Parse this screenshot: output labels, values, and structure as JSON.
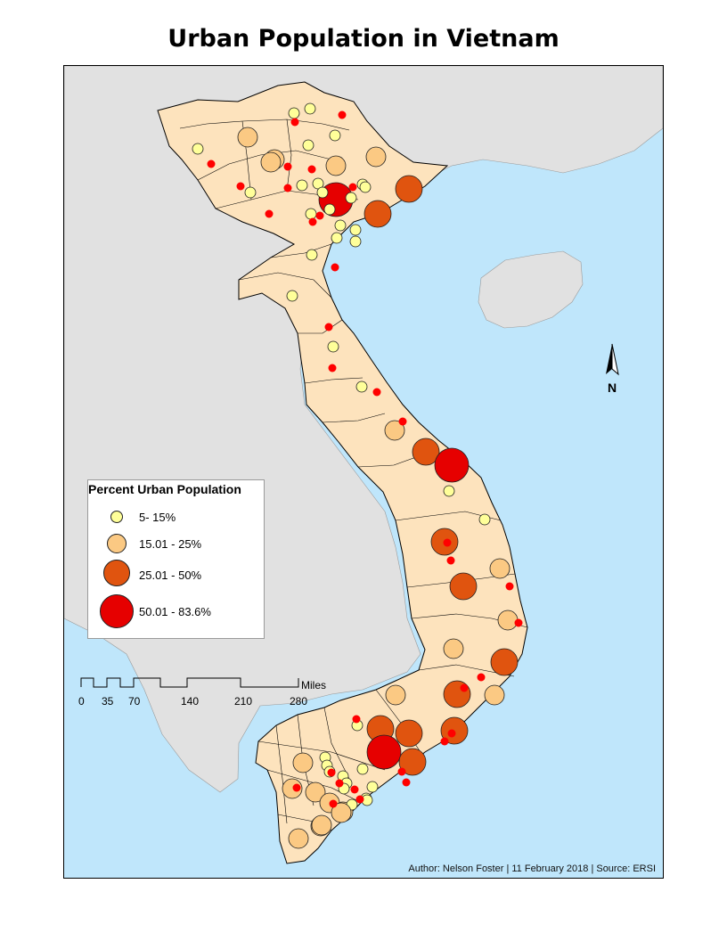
{
  "title": "Urban Population in Vietnam",
  "colors": {
    "sea": "#bfe6fb",
    "neighbor_land": "#e1e1e1",
    "province_fill": "#fde3bd",
    "province_border": "#000000",
    "class1": "#ffff99",
    "class2": "#fbc983",
    "class3": "#e0540f",
    "class4": "#e60000",
    "capital_dot": "#ff0000"
  },
  "legend": {
    "title": "Percent Urban Population",
    "classes": [
      {
        "label": "5- 15%",
        "color": "#ffff99"
      },
      {
        "label": "15.01 - 25%",
        "color": "#fbc983"
      },
      {
        "label": "25.01 - 50%",
        "color": "#e0540f"
      },
      {
        "label": "50.01 - 83.6%",
        "color": "#e60000"
      }
    ]
  },
  "scale": {
    "unit": "Miles",
    "ticks": [
      "0",
      "35",
      "70",
      "140",
      "210",
      "280"
    ]
  },
  "north_arrow_label": "N",
  "credits": "Author:  Nelson Foster | 11 February 2018 | Source: ERSI"
}
